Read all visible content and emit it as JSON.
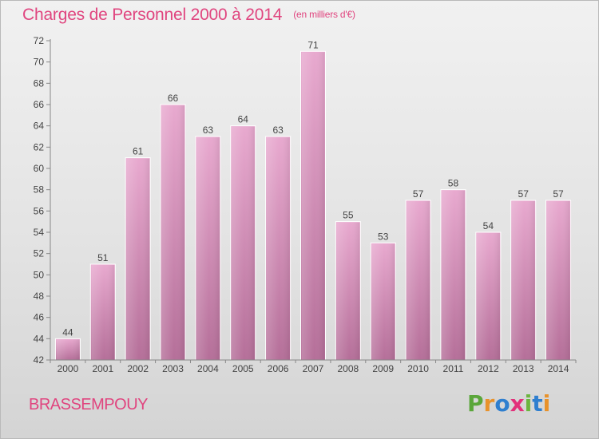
{
  "chart_data": {
    "type": "bar",
    "title": "Charges de Personnel 2000 à 2014",
    "subtitle": "(en milliers d'€)",
    "categories": [
      "2000",
      "2001",
      "2002",
      "2003",
      "2004",
      "2005",
      "2006",
      "2007",
      "2008",
      "2009",
      "2010",
      "2011",
      "2012",
      "2013",
      "2014"
    ],
    "values": [
      44,
      51,
      61,
      66,
      63,
      64,
      63,
      71,
      55,
      53,
      57,
      58,
      54,
      57,
      57
    ],
    "ylim": [
      42,
      72
    ],
    "yticks": [
      42,
      44,
      46,
      48,
      50,
      52,
      54,
      56,
      58,
      60,
      62,
      64,
      66,
      68,
      70,
      72
    ],
    "grid": false,
    "bar_color": "#d98db8"
  },
  "footer": {
    "place": "BRASSEMPOUY",
    "logo": "Proxiti",
    "logo_colors": [
      "#5aa63a",
      "#e8922b",
      "#2f7fcf",
      "#e2307a",
      "#6bb53e",
      "#2f7fcf",
      "#e8922b"
    ]
  }
}
